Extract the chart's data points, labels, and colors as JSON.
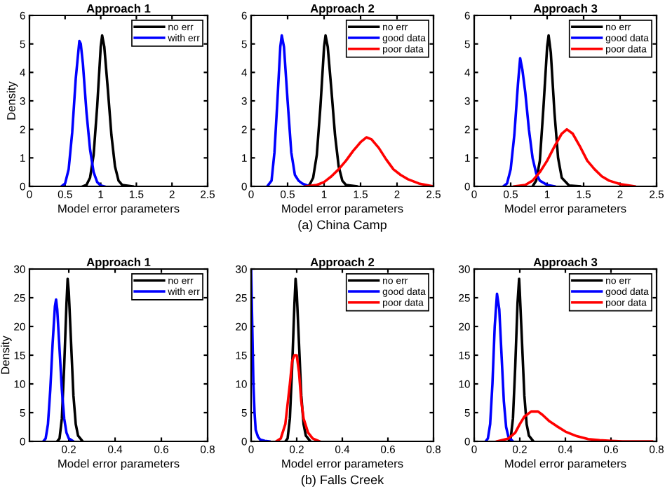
{
  "chart_data": [
    {
      "type": "line",
      "title": "Approach 1",
      "xlabel": "Model error parameters",
      "ylabel": "Density",
      "xlim": [
        0,
        2.5
      ],
      "ylim": [
        0,
        6
      ],
      "xticks": [
        0,
        0.5,
        1,
        1.5,
        2,
        2.5
      ],
      "yticks": [
        0,
        1,
        2,
        3,
        4,
        5,
        6
      ],
      "legend": "top right",
      "grid": false,
      "series": [
        {
          "name": "no err",
          "color": "#000000",
          "x": [
            0.75,
            0.8,
            0.85,
            0.9,
            0.95,
            1.0,
            1.02,
            1.05,
            1.1,
            1.15,
            1.2,
            1.25,
            1.3,
            1.45
          ],
          "values": [
            0,
            0.05,
            0.3,
            1.1,
            2.8,
            4.9,
            5.3,
            4.9,
            3.4,
            1.8,
            0.7,
            0.2,
            0.05,
            0
          ]
        },
        {
          "name": "with err",
          "color": "#0000ff",
          "x": [
            0.45,
            0.5,
            0.55,
            0.6,
            0.65,
            0.7,
            0.72,
            0.75,
            0.8,
            0.85,
            0.9,
            0.95,
            1.0,
            1.05
          ],
          "values": [
            0,
            0.1,
            0.6,
            1.9,
            3.8,
            5.1,
            5.0,
            4.3,
            2.6,
            1.3,
            0.5,
            0.15,
            0.03,
            0
          ]
        }
      ]
    },
    {
      "type": "line",
      "title": "Approach 2",
      "xlabel": "Model error parameters",
      "xlim": [
        0,
        2.5
      ],
      "ylim": [
        0,
        6
      ],
      "xticks": [
        0,
        0.5,
        1,
        1.5,
        2,
        2.5
      ],
      "yticks": [
        0,
        1,
        2,
        3,
        4,
        5,
        6
      ],
      "legend": "top right",
      "grid": false,
      "annotations": [
        "(a) China Camp"
      ],
      "series": [
        {
          "name": "no err",
          "color": "#000000",
          "x": [
            0.75,
            0.8,
            0.85,
            0.9,
            0.95,
            1.0,
            1.02,
            1.05,
            1.1,
            1.15,
            1.2,
            1.25,
            1.3,
            1.45
          ],
          "values": [
            0,
            0.05,
            0.3,
            1.1,
            2.8,
            4.9,
            5.3,
            4.9,
            3.4,
            1.8,
            0.7,
            0.2,
            0.05,
            0
          ]
        },
        {
          "name": "good data",
          "color": "#0000ff",
          "x": [
            0.22,
            0.28,
            0.32,
            0.36,
            0.4,
            0.42,
            0.45,
            0.5,
            0.55,
            0.6,
            0.65,
            0.7,
            0.75,
            0.8
          ],
          "values": [
            0,
            0.2,
            1.2,
            3.0,
            4.9,
            5.3,
            4.9,
            3.0,
            1.2,
            0.4,
            0.2,
            0.1,
            0.05,
            0
          ]
        },
        {
          "name": "poor data",
          "color": "#ff0000",
          "x": [
            0.75,
            0.9,
            1.0,
            1.1,
            1.2,
            1.3,
            1.4,
            1.5,
            1.58,
            1.65,
            1.75,
            1.85,
            1.95,
            2.05,
            2.15,
            2.3,
            2.5
          ],
          "values": [
            0,
            0.05,
            0.15,
            0.35,
            0.6,
            0.9,
            1.25,
            1.55,
            1.72,
            1.65,
            1.35,
            0.95,
            0.6,
            0.4,
            0.25,
            0.1,
            0
          ]
        }
      ]
    },
    {
      "type": "line",
      "title": "Approach 3",
      "xlabel": "Model error parameters",
      "xlim": [
        0,
        2.5
      ],
      "ylim": [
        0,
        6
      ],
      "xticks": [
        0,
        0.5,
        1,
        1.5,
        2,
        2.5
      ],
      "yticks": [
        0,
        1,
        2,
        3,
        4,
        5,
        6
      ],
      "legend": "top right",
      "grid": false,
      "series": [
        {
          "name": "no err",
          "color": "#000000",
          "x": [
            0.8,
            0.85,
            0.9,
            0.95,
            1.0,
            1.02,
            1.05,
            1.1,
            1.15,
            1.2,
            1.3,
            1.45
          ],
          "values": [
            0,
            0.2,
            0.9,
            2.8,
            4.9,
            5.3,
            4.7,
            2.6,
            1.0,
            0.3,
            0.03,
            0
          ]
        },
        {
          "name": "good data",
          "color": "#0000ff",
          "x": [
            0.4,
            0.45,
            0.5,
            0.55,
            0.6,
            0.63,
            0.66,
            0.7,
            0.75,
            0.8,
            0.85,
            0.9,
            1.0,
            1.1
          ],
          "values": [
            0,
            0.1,
            0.6,
            1.8,
            3.6,
            4.5,
            4.1,
            3.3,
            2.0,
            1.0,
            0.45,
            0.2,
            0.05,
            0
          ]
        },
        {
          "name": "poor data",
          "color": "#ff0000",
          "x": [
            0.55,
            0.7,
            0.8,
            0.9,
            1.0,
            1.1,
            1.2,
            1.27,
            1.35,
            1.45,
            1.55,
            1.65,
            1.75,
            1.85,
            2.0,
            2.2
          ],
          "values": [
            0,
            0.05,
            0.2,
            0.5,
            0.9,
            1.4,
            1.85,
            2.0,
            1.85,
            1.4,
            0.9,
            0.6,
            0.35,
            0.2,
            0.08,
            0
          ]
        }
      ]
    },
    {
      "type": "line",
      "title": "Approach 1",
      "xlabel": "Model error parameters",
      "ylabel": "Density",
      "xlim": [
        0.03,
        0.8
      ],
      "ylim": [
        0,
        30
      ],
      "xticks": [
        0.2,
        0.4,
        0.6,
        0.8
      ],
      "yticks": [
        0,
        5,
        10,
        15,
        20,
        25,
        30
      ],
      "legend": "top right",
      "grid": false,
      "series": [
        {
          "name": "no err",
          "color": "#000000",
          "x": [
            0.15,
            0.16,
            0.17,
            0.18,
            0.19,
            0.195,
            0.2,
            0.21,
            0.22,
            0.23,
            0.24,
            0.26
          ],
          "values": [
            0,
            0.5,
            4,
            13,
            24,
            28.3,
            26,
            17,
            8,
            3,
            1,
            0
          ]
        },
        {
          "name": "with err",
          "color": "#0000ff",
          "x": [
            0.09,
            0.1,
            0.11,
            0.12,
            0.13,
            0.14,
            0.145,
            0.15,
            0.16,
            0.17,
            0.18,
            0.19,
            0.2,
            0.22
          ],
          "values": [
            0,
            0.5,
            3,
            9,
            17,
            23.5,
            24.7,
            23,
            16,
            9,
            4,
            1.5,
            0.5,
            0
          ]
        }
      ]
    },
    {
      "type": "line",
      "title": "Approach 2",
      "xlabel": "Model error parameters",
      "xlim": [
        0,
        0.8
      ],
      "ylim": [
        0,
        30
      ],
      "xticks": [
        0,
        0.2,
        0.4,
        0.6,
        0.8
      ],
      "yticks": [
        0,
        5,
        10,
        15,
        20,
        25,
        30
      ],
      "legend": "top right",
      "grid": false,
      "annotations": [
        "(b) Falls Creek"
      ],
      "series": [
        {
          "name": "no err",
          "color": "#000000",
          "x": [
            0.15,
            0.16,
            0.17,
            0.18,
            0.19,
            0.195,
            0.2,
            0.21,
            0.22,
            0.23,
            0.24,
            0.26
          ],
          "values": [
            0,
            0.5,
            4,
            13,
            24,
            28.3,
            26,
            17,
            8,
            3,
            1,
            0
          ]
        },
        {
          "name": "good data",
          "color": "#0000ff",
          "x": [
            0,
            0.005,
            0.01,
            0.015,
            0.02,
            0.03,
            0.04,
            0.06,
            0.08
          ],
          "values": [
            30,
            20,
            10,
            5,
            2,
            0.8,
            0.3,
            0.1,
            0
          ]
        },
        {
          "name": "poor data",
          "color": "#ff0000",
          "x": [
            0.11,
            0.13,
            0.15,
            0.17,
            0.18,
            0.19,
            0.2,
            0.21,
            0.22,
            0.23,
            0.25,
            0.27,
            0.3
          ],
          "values": [
            0,
            0.5,
            3,
            10,
            14,
            15,
            15,
            12,
            7,
            4,
            1.5,
            0.5,
            0
          ]
        }
      ]
    },
    {
      "type": "line",
      "title": "Approach 3",
      "xlabel": "Model error parameters",
      "xlim": [
        0,
        0.8
      ],
      "ylim": [
        0,
        30
      ],
      "xticks": [
        0,
        0.2,
        0.4,
        0.6,
        0.8
      ],
      "yticks": [
        0,
        5,
        10,
        15,
        20,
        25,
        30
      ],
      "legend": "top right",
      "grid": false,
      "series": [
        {
          "name": "no err",
          "color": "#000000",
          "x": [
            0.15,
            0.16,
            0.17,
            0.18,
            0.19,
            0.197,
            0.2,
            0.21,
            0.22,
            0.23,
            0.24,
            0.26
          ],
          "values": [
            0,
            0.5,
            4,
            13,
            24,
            28.3,
            26,
            17,
            8,
            3,
            1,
            0
          ]
        },
        {
          "name": "good data",
          "color": "#0000ff",
          "x": [
            0.05,
            0.06,
            0.07,
            0.08,
            0.09,
            0.1,
            0.11,
            0.12,
            0.13,
            0.14,
            0.15,
            0.17
          ],
          "values": [
            0,
            0.5,
            3,
            10,
            20,
            25.7,
            23,
            15,
            7,
            2.5,
            0.8,
            0
          ]
        },
        {
          "name": "poor data",
          "color": "#ff0000",
          "x": [
            0.1,
            0.15,
            0.18,
            0.2,
            0.22,
            0.25,
            0.28,
            0.3,
            0.33,
            0.36,
            0.4,
            0.45,
            0.5,
            0.55,
            0.6,
            0.65,
            0.78
          ],
          "values": [
            0,
            0.5,
            1.5,
            3,
            4.3,
            5.2,
            5.2,
            4.6,
            3.5,
            2.7,
            1.7,
            0.9,
            0.4,
            0.2,
            0.1,
            0,
            0
          ]
        }
      ]
    }
  ]
}
